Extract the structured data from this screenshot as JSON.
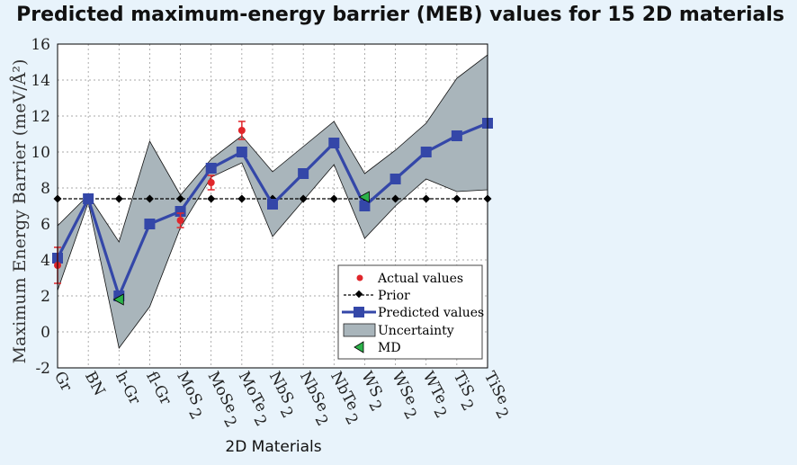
{
  "title": "Predicted maximum-energy barrier (MEB) values for 15 2D materials",
  "xlabel": "2D Materials",
  "ylabel": "Maximum Energy Barrier (meV/Å²)",
  "chart_data": {
    "type": "line",
    "categories": [
      {
        "base": "Gr",
        "sub": ""
      },
      {
        "base": "BN",
        "sub": ""
      },
      {
        "base": "h-Gr",
        "sub": ""
      },
      {
        "base": "fl-Gr",
        "sub": ""
      },
      {
        "base": "MoS",
        "sub": "2"
      },
      {
        "base": "MoSe",
        "sub": "2"
      },
      {
        "base": "MoTe",
        "sub": "2"
      },
      {
        "base": "NbS",
        "sub": "2"
      },
      {
        "base": "NbSe",
        "sub": "2"
      },
      {
        "base": "NbTe",
        "sub": "2"
      },
      {
        "base": "WS",
        "sub": "2"
      },
      {
        "base": "WSe",
        "sub": "2"
      },
      {
        "base": "WTe",
        "sub": "2"
      },
      {
        "base": "TiS",
        "sub": "2"
      },
      {
        "base": "TiSe",
        "sub": "2"
      }
    ],
    "ylim": [
      -2,
      16
    ],
    "yticks": [
      "-2",
      "0",
      "2",
      "4",
      "6",
      "8",
      "10",
      "12",
      "14",
      "16"
    ],
    "grid": true,
    "legend_position": "bottom-right",
    "legend": [
      "Actual values",
      "Prior",
      "Predicted values",
      "Uncertainty",
      "MD"
    ],
    "predicted": [
      4.1,
      7.4,
      2.0,
      6.0,
      6.7,
      9.1,
      10.0,
      7.1,
      8.8,
      10.5,
      7.0,
      8.5,
      10.0,
      10.9,
      11.6
    ],
    "prior": [
      7.4,
      7.4,
      7.4,
      7.4,
      7.4,
      7.4,
      7.4,
      7.4,
      7.4,
      7.4,
      7.4,
      7.4,
      7.4,
      7.4,
      7.4
    ],
    "uncertainty_upper": [
      5.9,
      7.6,
      5.0,
      10.6,
      7.6,
      9.6,
      10.9,
      8.9,
      10.3,
      11.7,
      8.8,
      10.1,
      11.6,
      14.1,
      15.4
    ],
    "uncertainty_lower": [
      2.3,
      7.2,
      -0.9,
      1.4,
      5.8,
      8.6,
      9.4,
      5.3,
      7.3,
      9.3,
      5.2,
      7.0,
      8.5,
      7.8,
      7.9
    ],
    "actual": [
      {
        "index": 0,
        "value": 3.7,
        "err": 1.0
      },
      {
        "index": 4,
        "value": 6.2,
        "err": 0.4
      },
      {
        "index": 5,
        "value": 8.3,
        "err": 0.4
      },
      {
        "index": 6,
        "value": 11.2,
        "err": 0.5
      }
    ],
    "md": [
      {
        "index": 2,
        "value": 1.8
      },
      {
        "index": 10,
        "value": 7.5
      }
    ],
    "colors": {
      "predicted": "#3447a8",
      "actual": "#e0262b",
      "prior": "#000000",
      "uncertainty_fill": "#a9b5bb",
      "md_fill": "#2cb34a",
      "grid": "#8d8d8d"
    }
  }
}
